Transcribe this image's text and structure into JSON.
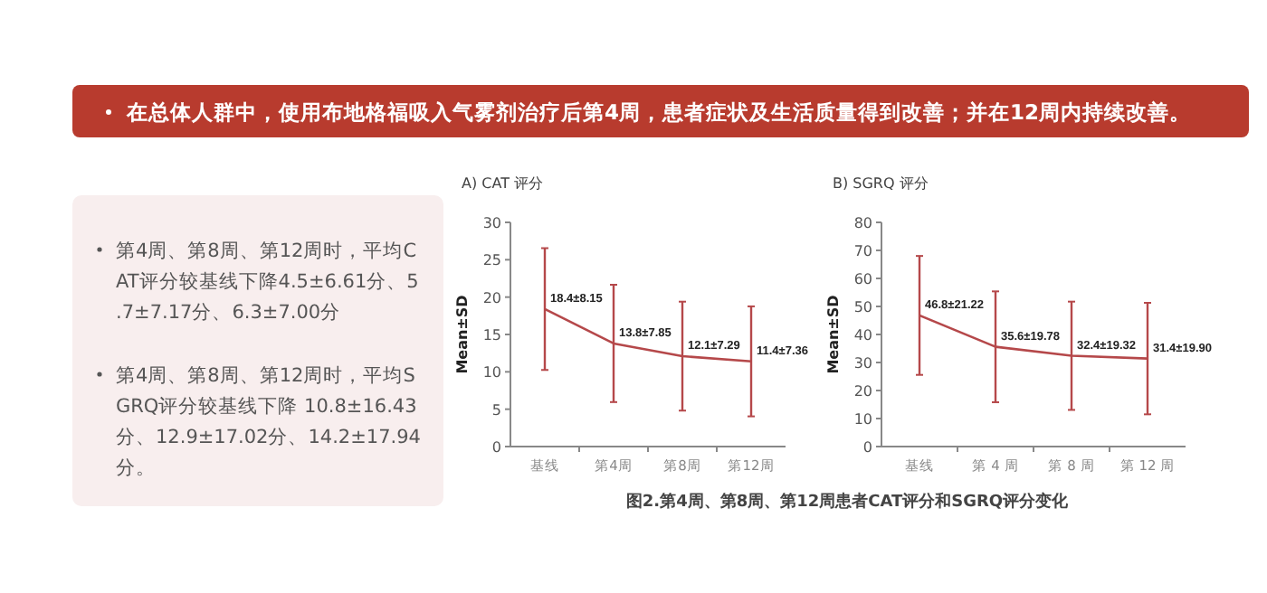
{
  "chart_data": [
    {
      "type": "other",
      "title": "在总体人群中，使用布地格福吸入气雾剂治疗后第4周，患者症状及生活质量得到改善；并在12周内持续改善。",
      "annotations": [
        "第4周、第8周、第12周时，平均CAT评分较基线下降4.5±6.61分、5.7±7.17分、6.3±7.00分",
        "第4周、第8周、第12周时，平均SGRQ评分较基线下降 10.8±16.43分、12.9±17.02分、14.2±17.94分。"
      ]
    },
    {
      "type": "line",
      "title": "A) CAT 评分",
      "ylabel": "Mean±SD",
      "categories": [
        "基线",
        "第4周",
        "第8周",
        "第12周"
      ],
      "ylim": [
        0,
        30
      ],
      "yticks": [
        0,
        5,
        10,
        15,
        20,
        25,
        30
      ],
      "series": [
        {
          "color": "#b5484a",
          "values": [
            18.4,
            13.8,
            12.1,
            11.4
          ],
          "errors": [
            8.15,
            7.85,
            7.29,
            7.36
          ],
          "value_labels": [
            "18.4±8.15",
            "13.8±7.85",
            "12.1±7.29",
            "11.4±7.36"
          ]
        }
      ]
    },
    {
      "type": "line",
      "title": "B) SGRQ 评分",
      "ylabel": "Mean±SD",
      "categories": [
        "基线",
        "第 4 周",
        "第 8 周",
        "第 12 周"
      ],
      "ylim": [
        0,
        80
      ],
      "yticks": [
        0,
        10,
        20,
        30,
        40,
        50,
        60,
        70,
        80
      ],
      "series": [
        {
          "color": "#b5484a",
          "values": [
            46.8,
            35.6,
            32.4,
            31.4
          ],
          "errors": [
            21.22,
            19.78,
            19.32,
            19.9
          ],
          "value_labels": [
            "46.8±21.22",
            "35.6±19.78",
            "32.4±19.32",
            "31.4±19.90"
          ]
        }
      ],
      "annotations": [
        "图2.第4周、第8周、第12周患者CAT评分和SGRQ评分变化"
      ]
    }
  ]
}
